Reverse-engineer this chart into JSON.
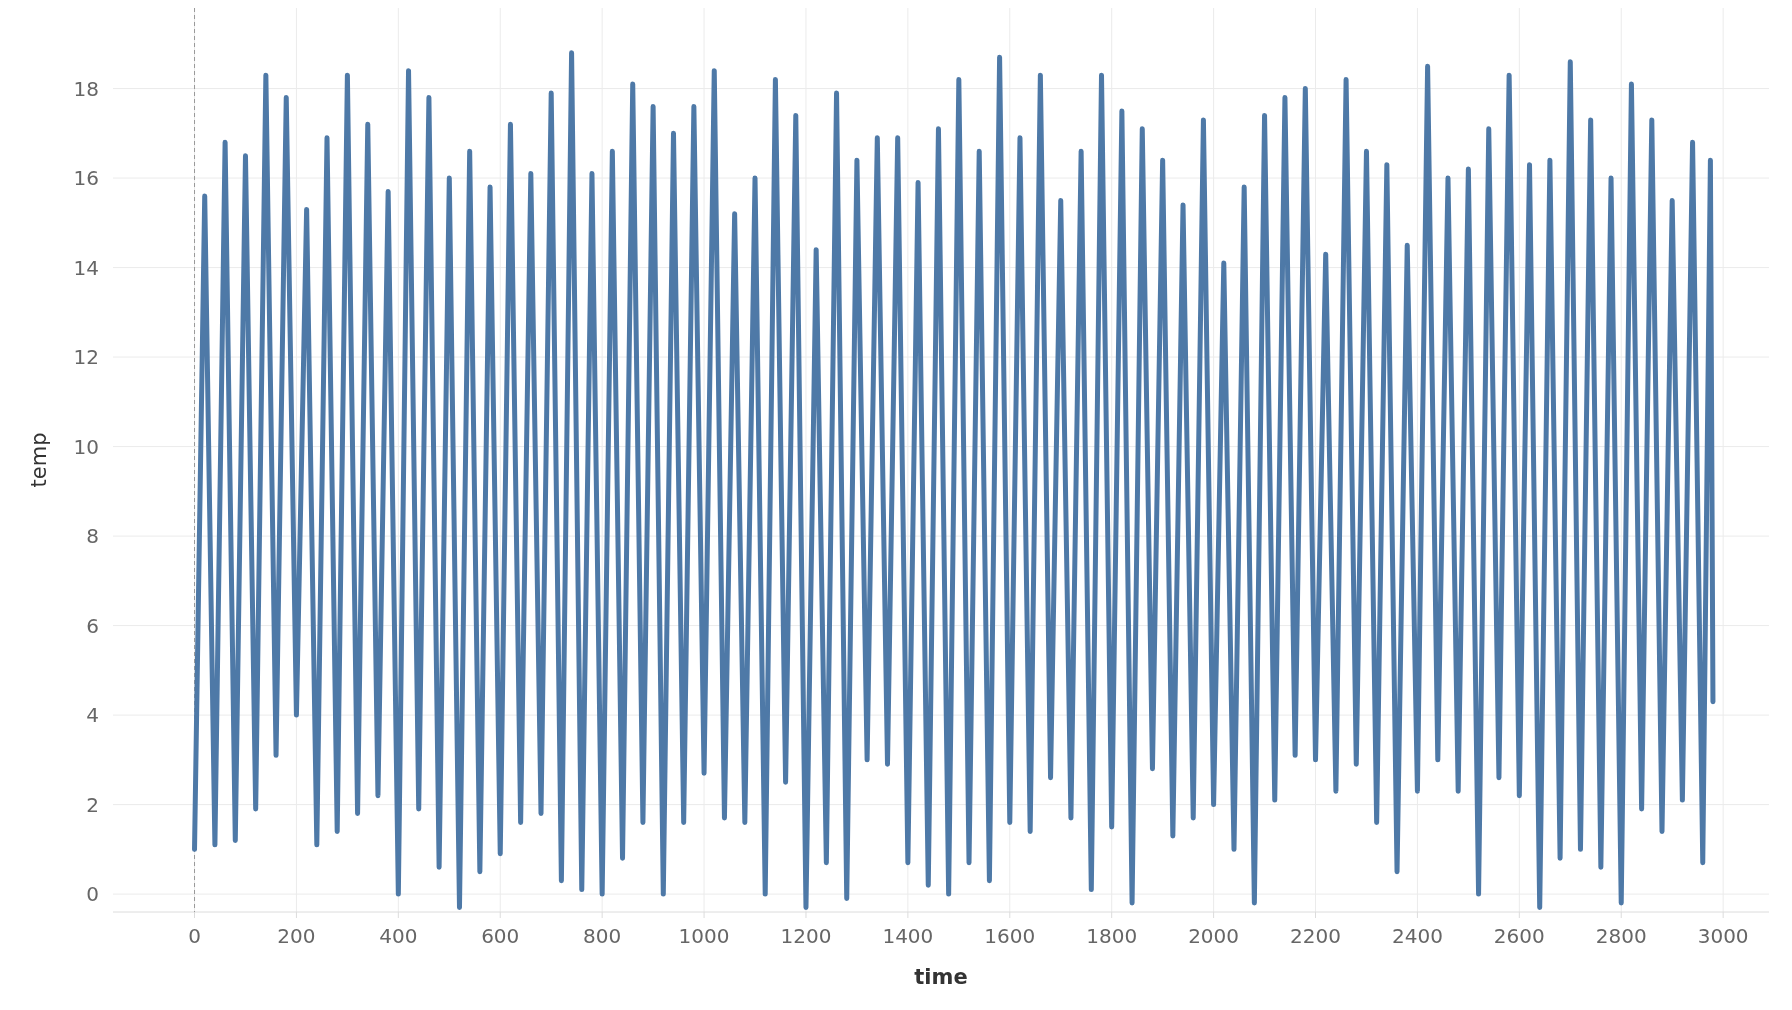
{
  "chart_data": {
    "type": "line",
    "xlabel": "time",
    "ylabel": "temp",
    "x": [
      0,
      20,
      40,
      60,
      80,
      100,
      120,
      140,
      160,
      180,
      200,
      220,
      240,
      260,
      280,
      300,
      320,
      340,
      360,
      380,
      400,
      420,
      440,
      460,
      480,
      500,
      520,
      540,
      560,
      580,
      600,
      620,
      640,
      660,
      680,
      700,
      720,
      740,
      760,
      780,
      800,
      820,
      840,
      860,
      880,
      900,
      920,
      940,
      960,
      980,
      1000,
      1020,
      1040,
      1060,
      1080,
      1100,
      1120,
      1140,
      1160,
      1180,
      1200,
      1220,
      1240,
      1260,
      1280,
      1300,
      1320,
      1340,
      1360,
      1380,
      1400,
      1420,
      1440,
      1460,
      1480,
      1500,
      1520,
      1540,
      1560,
      1580,
      1600,
      1620,
      1640,
      1660,
      1680,
      1700,
      1720,
      1740,
      1760,
      1780,
      1800,
      1820,
      1840,
      1860,
      1880,
      1900,
      1920,
      1940,
      1960,
      1980,
      2000,
      2020,
      2040,
      2060,
      2080,
      2100,
      2120,
      2140,
      2160,
      2180,
      2200,
      2220,
      2240,
      2260,
      2280,
      2300,
      2320,
      2340,
      2360,
      2380,
      2400,
      2420,
      2440,
      2460,
      2480,
      2500,
      2520,
      2540,
      2560,
      2580,
      2600,
      2620,
      2640,
      2660,
      2680,
      2700,
      2720,
      2740,
      2760,
      2780,
      2800,
      2820,
      2840,
      2860,
      2880,
      2900,
      2920,
      2940,
      2960,
      2975,
      2980
    ],
    "series": [
      {
        "color": "#4e79a7",
        "values": [
          1.0,
          15.6,
          1.1,
          16.8,
          1.2,
          16.5,
          1.9,
          18.3,
          3.1,
          17.8,
          4.0,
          15.3,
          1.1,
          16.9,
          1.4,
          18.3,
          1.8,
          17.2,
          2.2,
          15.7,
          0.0,
          18.4,
          1.9,
          17.8,
          0.6,
          16.0,
          -0.3,
          16.6,
          0.5,
          15.8,
          0.9,
          17.2,
          1.6,
          16.1,
          1.8,
          17.9,
          0.3,
          18.8,
          0.1,
          16.1,
          0.0,
          16.6,
          0.8,
          18.1,
          1.6,
          17.6,
          0.0,
          17.0,
          1.6,
          17.6,
          2.7,
          18.4,
          1.7,
          15.2,
          1.6,
          16.0,
          0.0,
          18.2,
          2.5,
          17.4,
          -0.3,
          14.4,
          0.7,
          17.9,
          -0.1,
          16.4,
          3.0,
          16.9,
          2.9,
          16.9,
          0.7,
          15.9,
          0.2,
          17.1,
          0.0,
          18.2,
          0.7,
          16.6,
          0.3,
          18.7,
          1.6,
          16.9,
          1.4,
          18.3,
          2.6,
          15.5,
          1.7,
          16.6,
          0.1,
          18.3,
          1.5,
          17.5,
          -0.2,
          17.1,
          2.8,
          16.4,
          1.3,
          15.4,
          1.7,
          17.3,
          2.0,
          14.1,
          1.0,
          15.8,
          -0.2,
          17.4,
          2.1,
          17.8,
          3.1,
          18.0,
          3.0,
          14.3,
          2.3,
          18.2,
          2.9,
          16.6,
          1.6,
          16.3,
          0.5,
          14.5,
          2.3,
          18.5,
          3.0,
          16.0,
          2.3,
          16.2,
          0.0,
          17.1,
          2.6,
          18.3,
          2.2,
          16.3,
          -0.3,
          16.4,
          0.8,
          18.6,
          1.0,
          17.3,
          0.6,
          16.0,
          -0.2,
          18.1,
          1.9,
          17.3,
          1.4,
          15.5,
          2.1,
          16.8,
          0.7,
          16.4,
          4.3
        ]
      }
    ],
    "xlim": [
      -160,
      3090
    ],
    "ylim": [
      -0.4,
      19.8
    ],
    "xticks": [
      0,
      200,
      400,
      600,
      800,
      1000,
      1200,
      1400,
      1600,
      1800,
      2000,
      2200,
      2400,
      2600,
      2800,
      3000
    ],
    "yticks": [
      0,
      2,
      4,
      6,
      8,
      10,
      12,
      14,
      16,
      18
    ],
    "grid": true,
    "marker": "none",
    "line_style": "solid",
    "ref_lines": [
      {
        "axis": "x",
        "value": 0,
        "label": null,
        "color": "#999999",
        "line_style": "dashed"
      }
    ]
  }
}
